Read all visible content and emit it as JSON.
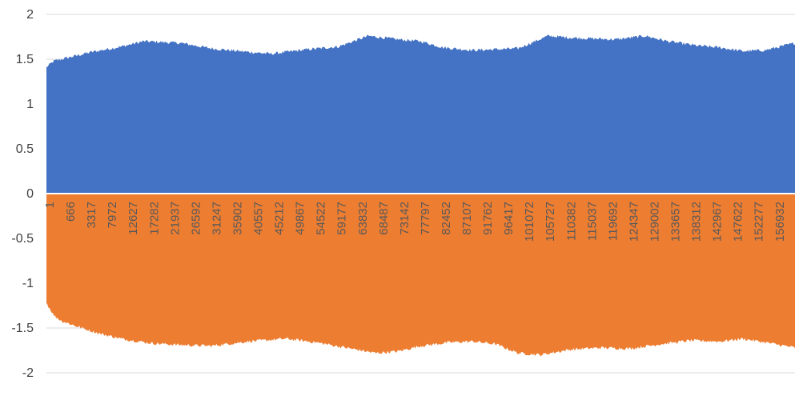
{
  "chart_data": {
    "type": "area",
    "title": "",
    "xlabel": "",
    "ylabel": "",
    "ylim": [
      -2,
      2
    ],
    "yticks": [
      "2",
      "1.5",
      "1",
      "0.5",
      "0",
      "-0.5",
      "-1",
      "-1.5",
      "-2"
    ],
    "x_tick_labels": [
      "1",
      "666",
      "3317",
      "7972",
      "12627",
      "17282",
      "21937",
      "26592",
      "31247",
      "35902",
      "40557",
      "45212",
      "49867",
      "54522",
      "59177",
      "63832",
      "68487",
      "73142",
      "77797",
      "82452",
      "87107",
      "91762",
      "96417",
      "101072",
      "105727",
      "110382",
      "115037",
      "119692",
      "124347",
      "129002",
      "133657",
      "138312",
      "142967",
      "147622",
      "152277",
      "156932"
    ],
    "grid": true,
    "legend": "none",
    "series": [
      {
        "color": "#4472C4",
        "envelope_x": [
          0,
          0.01,
          0.03,
          0.06,
          0.1,
          0.13,
          0.18,
          0.22,
          0.27,
          0.3,
          0.35,
          0.39,
          0.43,
          0.47,
          0.5,
          0.53,
          0.57,
          0.6,
          0.63,
          0.67,
          0.7,
          0.73,
          0.76,
          0.8,
          0.83,
          0.87,
          0.9,
          0.93,
          0.96,
          1.0
        ],
        "values": [
          1.41,
          1.48,
          1.52,
          1.58,
          1.64,
          1.7,
          1.68,
          1.62,
          1.58,
          1.56,
          1.61,
          1.64,
          1.76,
          1.72,
          1.7,
          1.63,
          1.6,
          1.61,
          1.62,
          1.76,
          1.74,
          1.73,
          1.72,
          1.76,
          1.7,
          1.65,
          1.63,
          1.59,
          1.6,
          1.68
        ]
      },
      {
        "color": "#ED7D31",
        "envelope_x": [
          0,
          0.01,
          0.02,
          0.04,
          0.07,
          0.1,
          0.14,
          0.18,
          0.22,
          0.27,
          0.32,
          0.36,
          0.4,
          0.44,
          0.47,
          0.5,
          0.54,
          0.57,
          0.6,
          0.63,
          0.66,
          0.7,
          0.74,
          0.78,
          0.82,
          0.86,
          0.9,
          0.93,
          0.96,
          1.0
        ],
        "values": [
          -1.22,
          -1.36,
          -1.42,
          -1.48,
          -1.56,
          -1.62,
          -1.67,
          -1.69,
          -1.7,
          -1.65,
          -1.62,
          -1.66,
          -1.72,
          -1.78,
          -1.76,
          -1.7,
          -1.66,
          -1.65,
          -1.68,
          -1.78,
          -1.8,
          -1.74,
          -1.72,
          -1.73,
          -1.68,
          -1.64,
          -1.65,
          -1.62,
          -1.66,
          -1.72
        ]
      }
    ]
  }
}
